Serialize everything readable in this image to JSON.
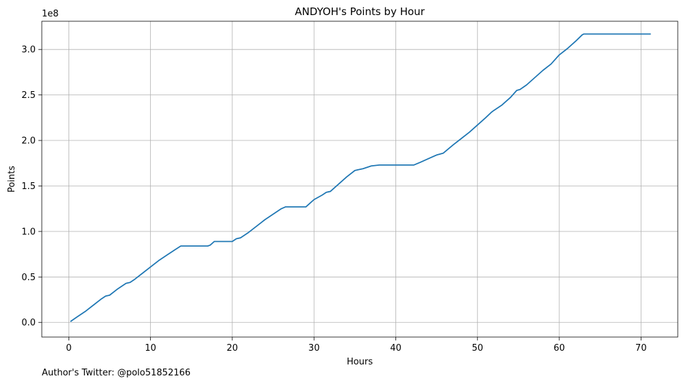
{
  "chart_data": {
    "type": "line",
    "title": "ANDYOH's Points by Hour",
    "xlabel": "Hours",
    "ylabel": "Points",
    "y_offset_label": "1e8",
    "xlim": [
      -3.3,
      74.5
    ],
    "ylim": [
      -0.16,
      3.31
    ],
    "xticks": [
      0,
      10,
      20,
      30,
      40,
      50,
      60,
      70
    ],
    "yticks": [
      0.0,
      0.5,
      1.0,
      1.5,
      2.0,
      2.5,
      3.0
    ],
    "ytick_labels": [
      "0.0",
      "0.5",
      "1.0",
      "1.5",
      "2.0",
      "2.5",
      "3.0"
    ],
    "y_units": "1e8 points",
    "grid": true,
    "line_color": "#1f77b4",
    "series": [
      {
        "x": [
          0.2,
          1,
          2,
          3,
          4,
          4.5,
          5,
          6,
          7,
          7.5,
          8,
          9,
          10,
          11,
          12,
          13,
          13.7,
          14,
          15,
          16,
          17,
          17.3,
          17.8,
          18,
          19,
          20,
          20.5,
          21,
          22,
          23,
          24,
          25,
          26,
          26.5,
          27,
          28,
          29,
          29.5,
          30,
          31,
          31.5,
          32,
          33,
          34,
          35,
          35.5,
          36,
          37,
          38,
          39,
          40,
          41,
          42,
          42.2,
          43,
          44,
          45,
          45.8,
          47,
          48,
          49,
          50,
          51,
          51.7,
          52,
          53,
          54,
          54.8,
          55.2,
          56,
          57,
          58,
          59,
          60,
          61,
          62,
          62.8,
          63,
          65,
          70,
          71.2
        ],
        "y": [
          0.01,
          0.06,
          0.12,
          0.19,
          0.26,
          0.29,
          0.3,
          0.37,
          0.43,
          0.44,
          0.47,
          0.54,
          0.61,
          0.68,
          0.74,
          0.8,
          0.84,
          0.84,
          0.84,
          0.84,
          0.84,
          0.85,
          0.89,
          0.89,
          0.89,
          0.89,
          0.92,
          0.93,
          0.99,
          1.06,
          1.13,
          1.19,
          1.25,
          1.27,
          1.27,
          1.27,
          1.27,
          1.31,
          1.35,
          1.4,
          1.43,
          1.44,
          1.52,
          1.6,
          1.67,
          1.68,
          1.69,
          1.72,
          1.73,
          1.73,
          1.73,
          1.73,
          1.73,
          1.73,
          1.76,
          1.8,
          1.84,
          1.86,
          1.95,
          2.02,
          2.09,
          2.17,
          2.25,
          2.31,
          2.33,
          2.39,
          2.47,
          2.55,
          2.56,
          2.61,
          2.69,
          2.77,
          2.84,
          2.94,
          3.01,
          3.09,
          3.16,
          3.17,
          3.17,
          3.17,
          3.17
        ]
      }
    ]
  },
  "footer_text": "Author's Twitter: @polo51852166"
}
